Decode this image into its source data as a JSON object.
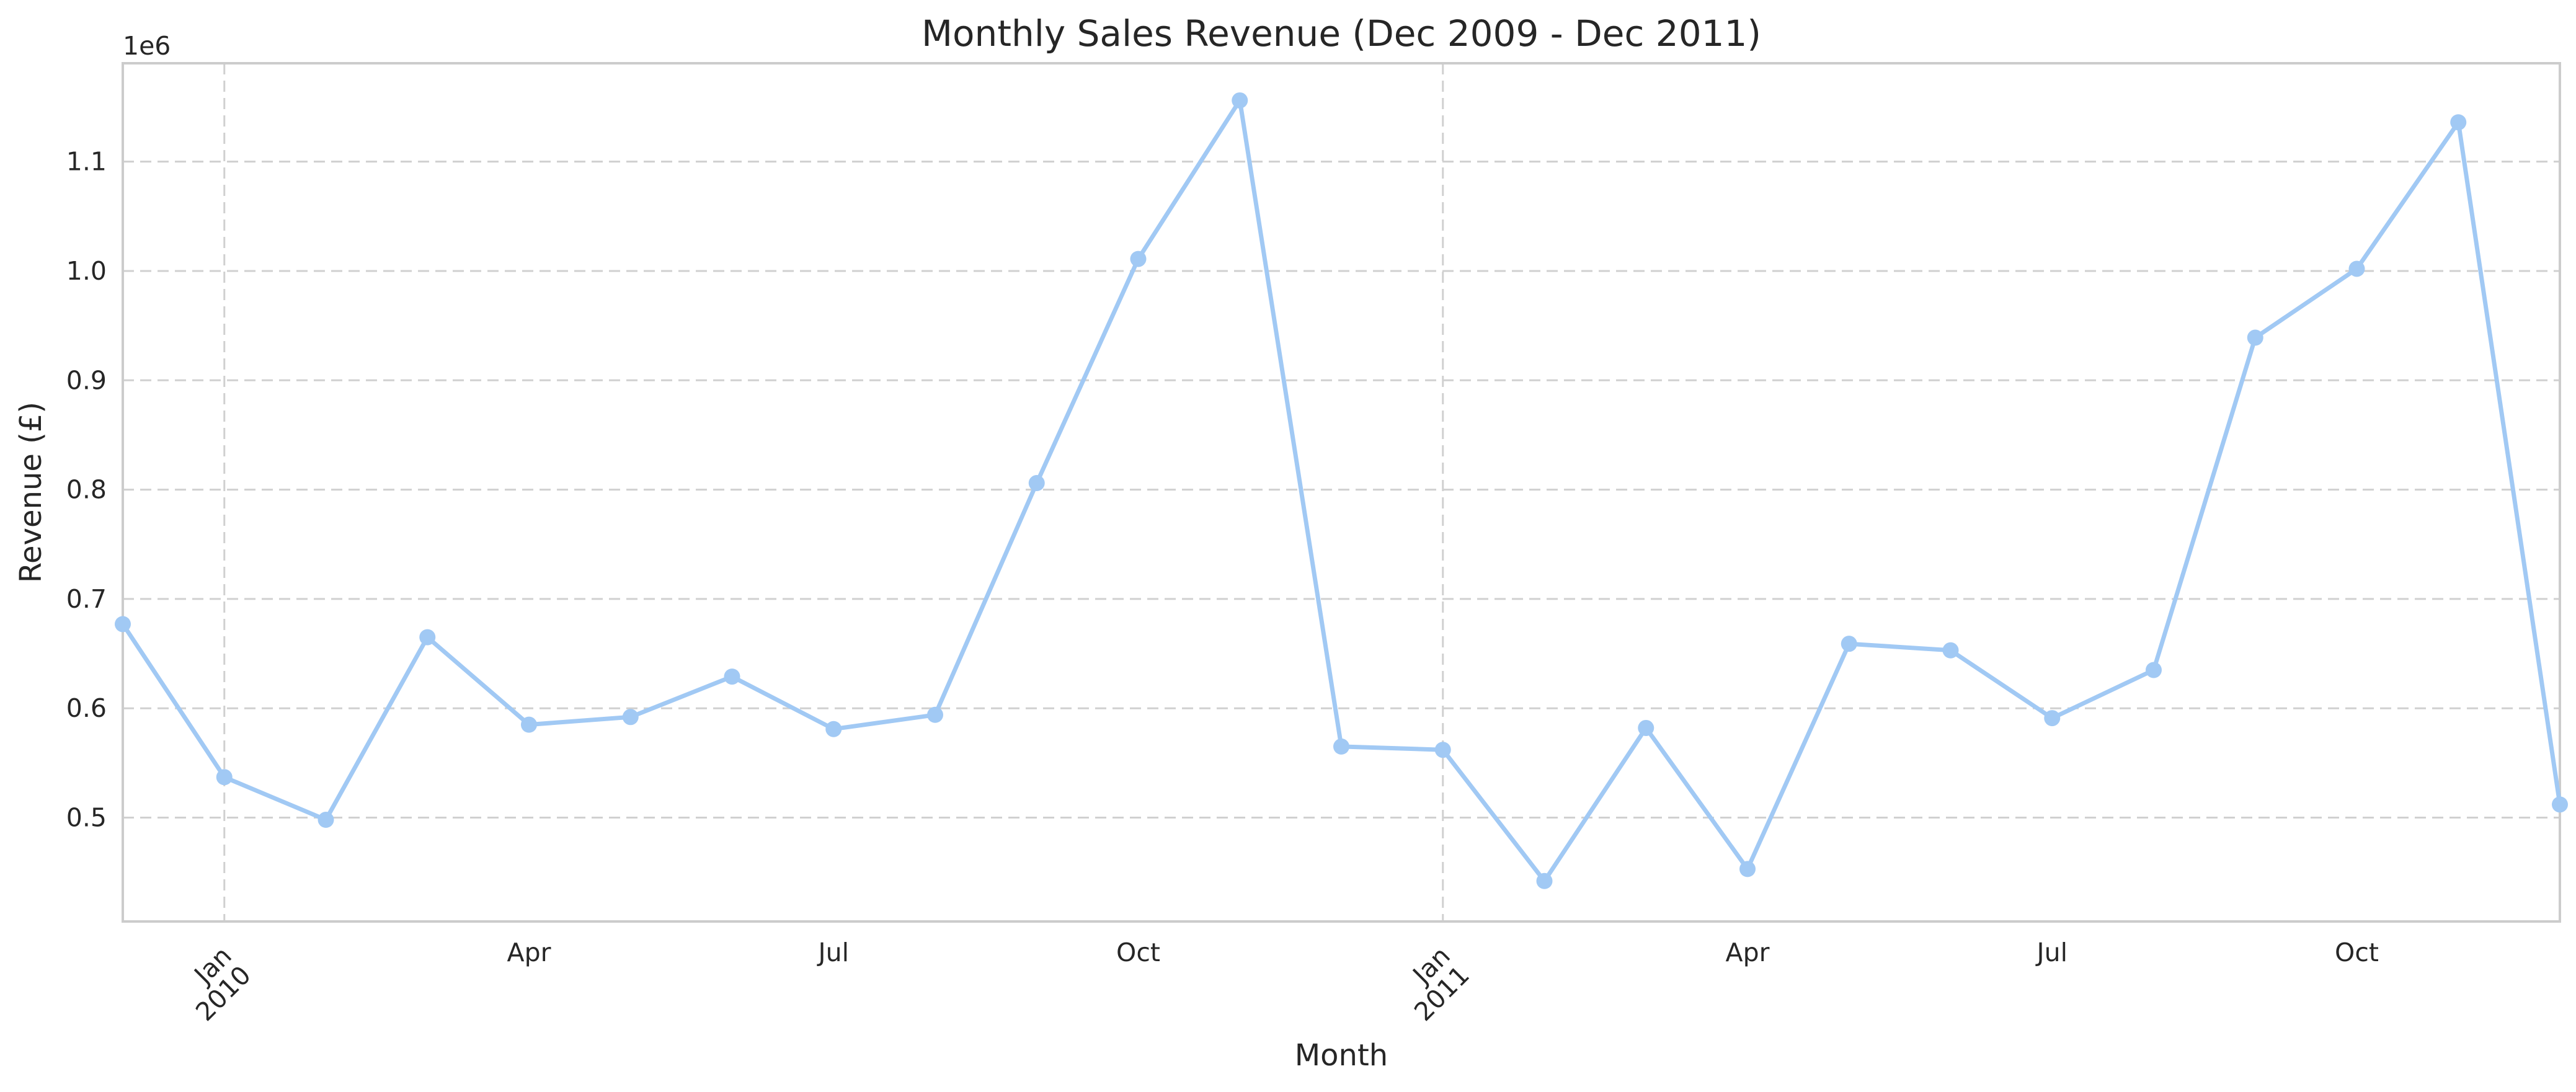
{
  "chart_data": {
    "type": "line",
    "title": "Monthly Sales Revenue (Dec 2009 - Dec 2011)",
    "xlabel": "Month",
    "ylabel": "Revenue (£)",
    "y_offset_label": "1e6",
    "y_scale": 1000000,
    "xlim": [
      "2009-12",
      "2011-12"
    ],
    "ylim": [
      405000,
      1190000
    ],
    "grid": true,
    "line_color": "#a1c9f4",
    "y_ticks": [
      {
        "value": 500000,
        "label": "0.5"
      },
      {
        "value": 600000,
        "label": "0.6"
      },
      {
        "value": 700000,
        "label": "0.7"
      },
      {
        "value": 800000,
        "label": "0.8"
      },
      {
        "value": 900000,
        "label": "0.9"
      },
      {
        "value": 1000000,
        "label": "1.0"
      },
      {
        "value": 1100000,
        "label": "1.1"
      }
    ],
    "x_ticks": [
      {
        "x": "2010-01",
        "label": "Jan",
        "label2": "2010",
        "major": true
      },
      {
        "x": "2010-04",
        "label": "Apr"
      },
      {
        "x": "2010-07",
        "label": "Jul"
      },
      {
        "x": "2010-10",
        "label": "Oct"
      },
      {
        "x": "2011-01",
        "label": "Jan",
        "label2": "2011",
        "major": true
      },
      {
        "x": "2011-04",
        "label": "Apr"
      },
      {
        "x": "2011-07",
        "label": "Jul"
      },
      {
        "x": "2011-10",
        "label": "Oct"
      }
    ],
    "x": [
      "2009-12",
      "2010-01",
      "2010-02",
      "2010-03",
      "2010-04",
      "2010-05",
      "2010-06",
      "2010-07",
      "2010-08",
      "2010-09",
      "2010-10",
      "2010-11",
      "2010-12",
      "2011-01",
      "2011-02",
      "2011-03",
      "2011-04",
      "2011-05",
      "2011-06",
      "2011-07",
      "2011-08",
      "2011-09",
      "2011-10",
      "2011-11",
      "2011-12"
    ],
    "series": [
      {
        "values": [
          677000,
          537000,
          498000,
          665000,
          585000,
          592000,
          629000,
          581000,
          594000,
          806000,
          1011000,
          1156000,
          565000,
          562000,
          442000,
          582000,
          453000,
          659000,
          653000,
          591000,
          635000,
          939000,
          1002000,
          1136000,
          512000
        ]
      }
    ]
  }
}
